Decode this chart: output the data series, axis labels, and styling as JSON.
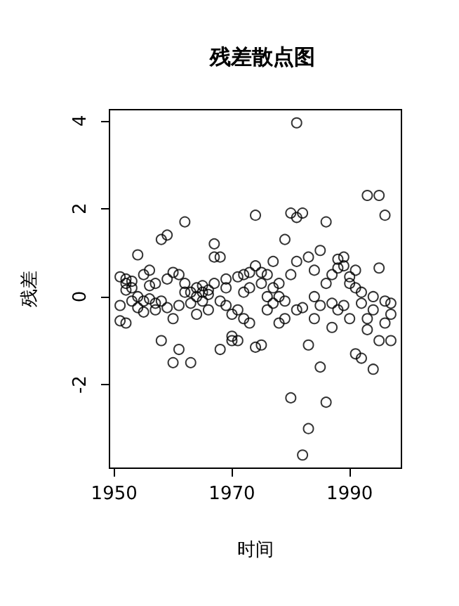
{
  "chart_data": {
    "type": "scatter",
    "title": "残差散点图",
    "xlabel": "时间",
    "ylabel": "残差",
    "xlim": [
      1949.2,
      1998.8
    ],
    "ylim": [
      -3.9,
      4.25
    ],
    "xticks": [
      1950,
      1970,
      1990
    ],
    "yticks": [
      -2,
      0,
      2,
      4
    ],
    "grid": false,
    "marker": "circle",
    "series": [
      {
        "color": "#000000",
        "x": [
          1951,
          1951,
          1951,
          1952,
          1952,
          1952,
          1952,
          1953,
          1953,
          1953,
          1954,
          1954,
          1954,
          1955,
          1955,
          1955,
          1956,
          1956,
          1956,
          1957,
          1957,
          1957,
          1958,
          1958,
          1958,
          1959,
          1959,
          1959,
          1960,
          1960,
          1960,
          1961,
          1961,
          1961,
          1962,
          1962,
          1962,
          1963,
          1963,
          1963,
          1964,
          1964,
          1964,
          1965,
          1965,
          1965,
          1966,
          1966,
          1966,
          1967,
          1967,
          1967,
          1968,
          1968,
          1968,
          1969,
          1969,
          1969,
          1970,
          1970,
          1970,
          1971,
          1971,
          1971,
          1972,
          1972,
          1972,
          1973,
          1973,
          1973,
          1974,
          1974,
          1974,
          1975,
          1975,
          1975,
          1976,
          1976,
          1976,
          1977,
          1977,
          1977,
          1978,
          1978,
          1978,
          1979,
          1979,
          1979,
          1980,
          1980,
          1980,
          1981,
          1981,
          1981,
          1981,
          1982,
          1982,
          1982,
          1983,
          1983,
          1983,
          1984,
          1984,
          1984,
          1985,
          1985,
          1985,
          1986,
          1986,
          1986,
          1987,
          1987,
          1987,
          1988,
          1988,
          1988,
          1989,
          1989,
          1989,
          1990,
          1990,
          1990,
          1991,
          1991,
          1991,
          1992,
          1992,
          1992,
          1993,
          1993,
          1993,
          1994,
          1994,
          1994,
          1995,
          1995,
          1995,
          1996,
          1996,
          1996,
          1997,
          1997,
          1997
        ],
        "values": [
          0.45,
          -0.55,
          -0.2,
          0.3,
          0.4,
          -0.6,
          0.15,
          0.2,
          -0.1,
          0.35,
          0.95,
          -0.25,
          0.0,
          -0.35,
          -0.1,
          0.5,
          -0.05,
          0.6,
          0.25,
          -0.3,
          -0.15,
          0.3,
          1.3,
          -1.0,
          -0.1,
          1.4,
          0.4,
          -0.25,
          -1.5,
          0.55,
          -0.5,
          0.5,
          -0.2,
          -1.2,
          1.7,
          0.3,
          0.1,
          -1.5,
          0.1,
          -0.15,
          0.2,
          -0.4,
          0.0,
          0.25,
          0.1,
          -0.1,
          0.15,
          0.05,
          -0.3,
          1.2,
          0.9,
          0.3,
          0.9,
          -0.1,
          -1.2,
          0.4,
          0.2,
          -0.2,
          -0.4,
          -0.9,
          -1.0,
          0.45,
          -1.0,
          -0.3,
          0.5,
          -0.5,
          0.1,
          0.55,
          0.2,
          -0.6,
          1.85,
          0.7,
          -1.15,
          0.55,
          0.3,
          -1.1,
          0.5,
          0.0,
          -0.3,
          0.8,
          -0.15,
          0.2,
          -0.6,
          0.0,
          0.3,
          1.3,
          -0.1,
          -0.5,
          1.9,
          0.5,
          -2.3,
          3.95,
          1.8,
          0.8,
          -0.3,
          1.9,
          -0.25,
          -3.6,
          0.9,
          -1.1,
          -3.0,
          0.0,
          -0.5,
          0.6,
          1.05,
          -0.2,
          -1.6,
          1.7,
          0.3,
          -2.4,
          -0.15,
          0.5,
          -0.7,
          0.85,
          0.65,
          -0.3,
          0.7,
          0.9,
          -0.2,
          0.45,
          -0.5,
          0.3,
          0.6,
          -1.3,
          0.2,
          -0.15,
          -1.4,
          0.1,
          2.3,
          -0.75,
          -0.5,
          0.0,
          -1.65,
          -0.3,
          2.3,
          0.65,
          -1.0,
          1.85,
          -0.1,
          -0.6,
          -0.4,
          -0.15,
          -1.0
        ]
      }
    ]
  }
}
